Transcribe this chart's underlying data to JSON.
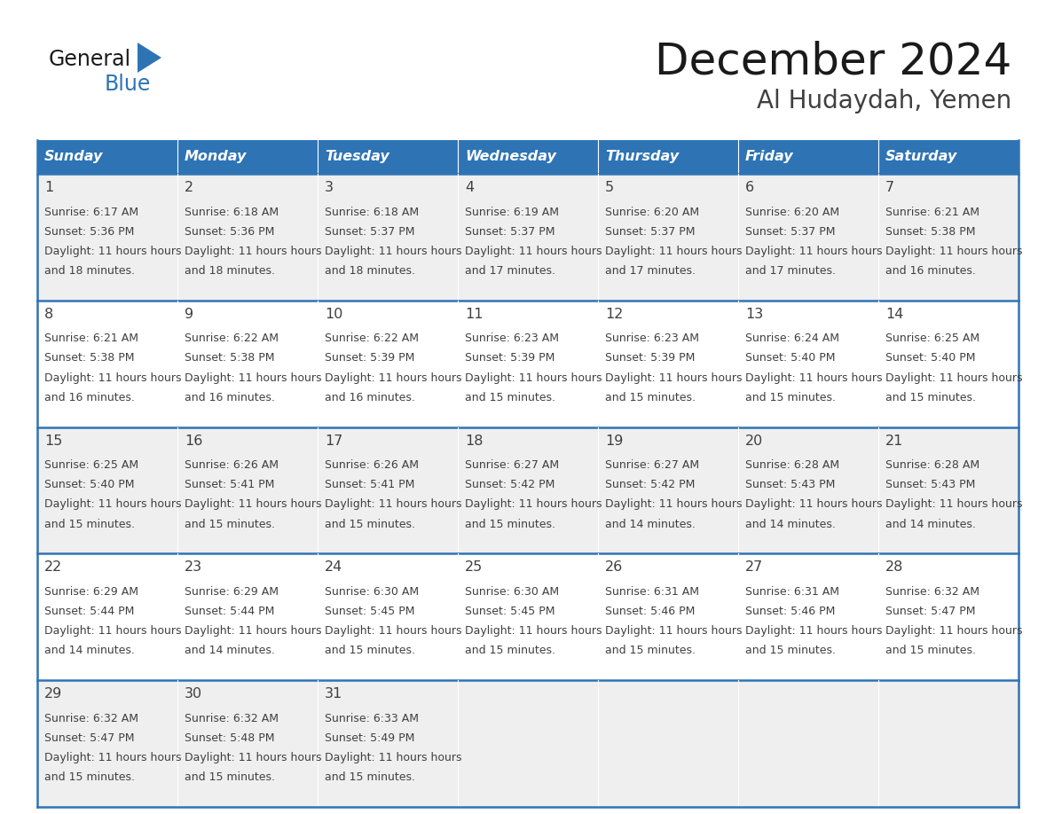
{
  "title": "December 2024",
  "subtitle": "Al Hudaydah, Yemen",
  "days_of_week": [
    "Sunday",
    "Monday",
    "Tuesday",
    "Wednesday",
    "Thursday",
    "Friday",
    "Saturday"
  ],
  "header_bg": "#2E74B5",
  "header_text_color": "#FFFFFF",
  "row_bg_odd": "#EFEFEF",
  "row_bg_even": "#FFFFFF",
  "border_color": "#2E74B5",
  "text_color": "#404040",
  "day_num_color": "#404040",
  "calendar_data": [
    [
      {
        "day": 1,
        "sunrise": "6:17 AM",
        "sunset": "5:36 PM",
        "daylight": "11 hours and 18 minutes."
      },
      {
        "day": 2,
        "sunrise": "6:18 AM",
        "sunset": "5:36 PM",
        "daylight": "11 hours and 18 minutes."
      },
      {
        "day": 3,
        "sunrise": "6:18 AM",
        "sunset": "5:37 PM",
        "daylight": "11 hours and 18 minutes."
      },
      {
        "day": 4,
        "sunrise": "6:19 AM",
        "sunset": "5:37 PM",
        "daylight": "11 hours and 17 minutes."
      },
      {
        "day": 5,
        "sunrise": "6:20 AM",
        "sunset": "5:37 PM",
        "daylight": "11 hours and 17 minutes."
      },
      {
        "day": 6,
        "sunrise": "6:20 AM",
        "sunset": "5:37 PM",
        "daylight": "11 hours and 17 minutes."
      },
      {
        "day": 7,
        "sunrise": "6:21 AM",
        "sunset": "5:38 PM",
        "daylight": "11 hours and 16 minutes."
      }
    ],
    [
      {
        "day": 8,
        "sunrise": "6:21 AM",
        "sunset": "5:38 PM",
        "daylight": "11 hours and 16 minutes."
      },
      {
        "day": 9,
        "sunrise": "6:22 AM",
        "sunset": "5:38 PM",
        "daylight": "11 hours and 16 minutes."
      },
      {
        "day": 10,
        "sunrise": "6:22 AM",
        "sunset": "5:39 PM",
        "daylight": "11 hours and 16 minutes."
      },
      {
        "day": 11,
        "sunrise": "6:23 AM",
        "sunset": "5:39 PM",
        "daylight": "11 hours and 15 minutes."
      },
      {
        "day": 12,
        "sunrise": "6:23 AM",
        "sunset": "5:39 PM",
        "daylight": "11 hours and 15 minutes."
      },
      {
        "day": 13,
        "sunrise": "6:24 AM",
        "sunset": "5:40 PM",
        "daylight": "11 hours and 15 minutes."
      },
      {
        "day": 14,
        "sunrise": "6:25 AM",
        "sunset": "5:40 PM",
        "daylight": "11 hours and 15 minutes."
      }
    ],
    [
      {
        "day": 15,
        "sunrise": "6:25 AM",
        "sunset": "5:40 PM",
        "daylight": "11 hours and 15 minutes."
      },
      {
        "day": 16,
        "sunrise": "6:26 AM",
        "sunset": "5:41 PM",
        "daylight": "11 hours and 15 minutes."
      },
      {
        "day": 17,
        "sunrise": "6:26 AM",
        "sunset": "5:41 PM",
        "daylight": "11 hours and 15 minutes."
      },
      {
        "day": 18,
        "sunrise": "6:27 AM",
        "sunset": "5:42 PM",
        "daylight": "11 hours and 15 minutes."
      },
      {
        "day": 19,
        "sunrise": "6:27 AM",
        "sunset": "5:42 PM",
        "daylight": "11 hours and 14 minutes."
      },
      {
        "day": 20,
        "sunrise": "6:28 AM",
        "sunset": "5:43 PM",
        "daylight": "11 hours and 14 minutes."
      },
      {
        "day": 21,
        "sunrise": "6:28 AM",
        "sunset": "5:43 PM",
        "daylight": "11 hours and 14 minutes."
      }
    ],
    [
      {
        "day": 22,
        "sunrise": "6:29 AM",
        "sunset": "5:44 PM",
        "daylight": "11 hours and 14 minutes."
      },
      {
        "day": 23,
        "sunrise": "6:29 AM",
        "sunset": "5:44 PM",
        "daylight": "11 hours and 14 minutes."
      },
      {
        "day": 24,
        "sunrise": "6:30 AM",
        "sunset": "5:45 PM",
        "daylight": "11 hours and 15 minutes."
      },
      {
        "day": 25,
        "sunrise": "6:30 AM",
        "sunset": "5:45 PM",
        "daylight": "11 hours and 15 minutes."
      },
      {
        "day": 26,
        "sunrise": "6:31 AM",
        "sunset": "5:46 PM",
        "daylight": "11 hours and 15 minutes."
      },
      {
        "day": 27,
        "sunrise": "6:31 AM",
        "sunset": "5:46 PM",
        "daylight": "11 hours and 15 minutes."
      },
      {
        "day": 28,
        "sunrise": "6:32 AM",
        "sunset": "5:47 PM",
        "daylight": "11 hours and 15 minutes."
      }
    ],
    [
      {
        "day": 29,
        "sunrise": "6:32 AM",
        "sunset": "5:47 PM",
        "daylight": "11 hours and 15 minutes."
      },
      {
        "day": 30,
        "sunrise": "6:32 AM",
        "sunset": "5:48 PM",
        "daylight": "11 hours and 15 minutes."
      },
      {
        "day": 31,
        "sunrise": "6:33 AM",
        "sunset": "5:49 PM",
        "daylight": "11 hours and 15 minutes."
      },
      null,
      null,
      null,
      null
    ]
  ]
}
